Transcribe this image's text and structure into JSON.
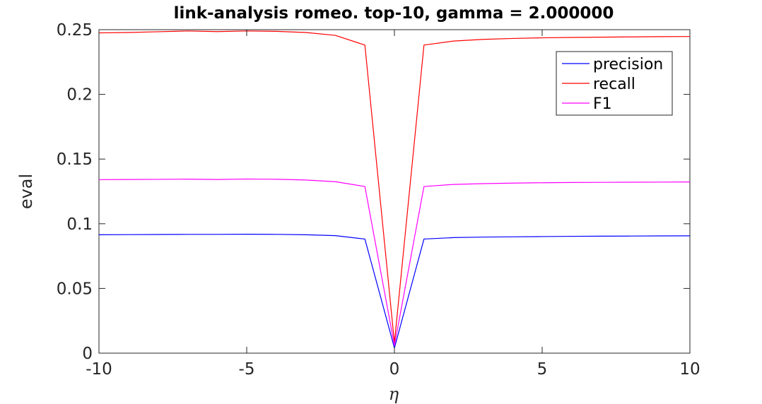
{
  "chart_data": {
    "type": "line",
    "title": "link-analysis romeo. top-10, gamma = 2.000000",
    "xlabel": "η",
    "ylabel": "eval",
    "xlim": [
      -10,
      10
    ],
    "ylim": [
      0,
      0.25
    ],
    "xticks": [
      -10,
      -5,
      0,
      5,
      10
    ],
    "xtick_labels": [
      "-10",
      "-5",
      "0",
      "5",
      "10"
    ],
    "yticks": [
      0,
      0.05,
      0.1,
      0.15,
      0.2,
      0.25
    ],
    "ytick_labels": [
      "0",
      "0.05",
      "0.1",
      "0.15",
      "0.2",
      "0.25"
    ],
    "grid": false,
    "legend_position": "top-right",
    "x": [
      -10,
      -9,
      -8,
      -7,
      -6,
      -5,
      -4,
      -3,
      -2,
      -1,
      0,
      1,
      2,
      3,
      4,
      5,
      6,
      7,
      8,
      9,
      10
    ],
    "series": [
      {
        "name": "precision",
        "color": "#0000ff",
        "values": [
          0.0915,
          0.0916,
          0.0917,
          0.0918,
          0.0918,
          0.0919,
          0.0918,
          0.0915,
          0.0908,
          0.0882,
          0.004,
          0.0882,
          0.0893,
          0.0897,
          0.0899,
          0.0901,
          0.0903,
          0.0904,
          0.0905,
          0.0906,
          0.0907
        ]
      },
      {
        "name": "recall",
        "color": "#ff0000",
        "values": [
          0.2475,
          0.2478,
          0.2484,
          0.249,
          0.2485,
          0.249,
          0.2487,
          0.2478,
          0.2456,
          0.2381,
          0.008,
          0.2381,
          0.2412,
          0.2425,
          0.2432,
          0.2437,
          0.244,
          0.2442,
          0.2444,
          0.2446,
          0.2447
        ]
      },
      {
        "name": "F1",
        "color": "#ff00ff",
        "values": [
          0.1341,
          0.1342,
          0.1343,
          0.1345,
          0.1342,
          0.1346,
          0.1344,
          0.1338,
          0.1325,
          0.1288,
          0.006,
          0.1288,
          0.1304,
          0.131,
          0.1314,
          0.1317,
          0.1319,
          0.132,
          0.1321,
          0.1322,
          0.1323
        ]
      }
    ]
  }
}
